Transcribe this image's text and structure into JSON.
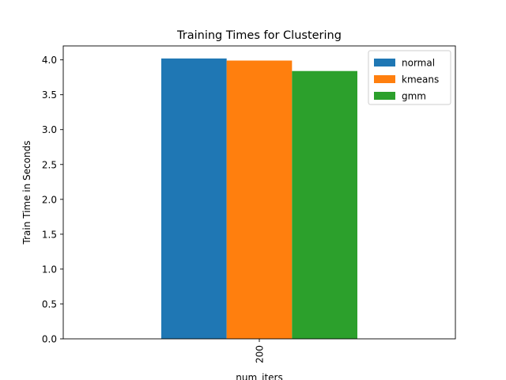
{
  "chart_data": {
    "type": "bar",
    "title": "Training Times for Clustering",
    "xlabel": "num_iters",
    "ylabel": "Train Time in Seconds",
    "categories": [
      "200"
    ],
    "series": [
      {
        "name": "normal",
        "values": [
          4.02
        ],
        "color": "#1f77b4"
      },
      {
        "name": "kmeans",
        "values": [
          3.99
        ],
        "color": "#ff7f0e"
      },
      {
        "name": "gmm",
        "values": [
          3.84
        ],
        "color": "#2ca02c"
      }
    ],
    "ylim": [
      0,
      4.2
    ],
    "yticks": [
      0.0,
      0.5,
      1.0,
      1.5,
      2.0,
      2.5,
      3.0,
      3.5,
      4.0
    ],
    "ytick_labels": [
      "0.0",
      "0.5",
      "1.0",
      "1.5",
      "2.0",
      "2.5",
      "3.0",
      "3.5",
      "4.0"
    ],
    "xtick_rotation": 90,
    "grid": false,
    "legend_position": "top-right"
  }
}
